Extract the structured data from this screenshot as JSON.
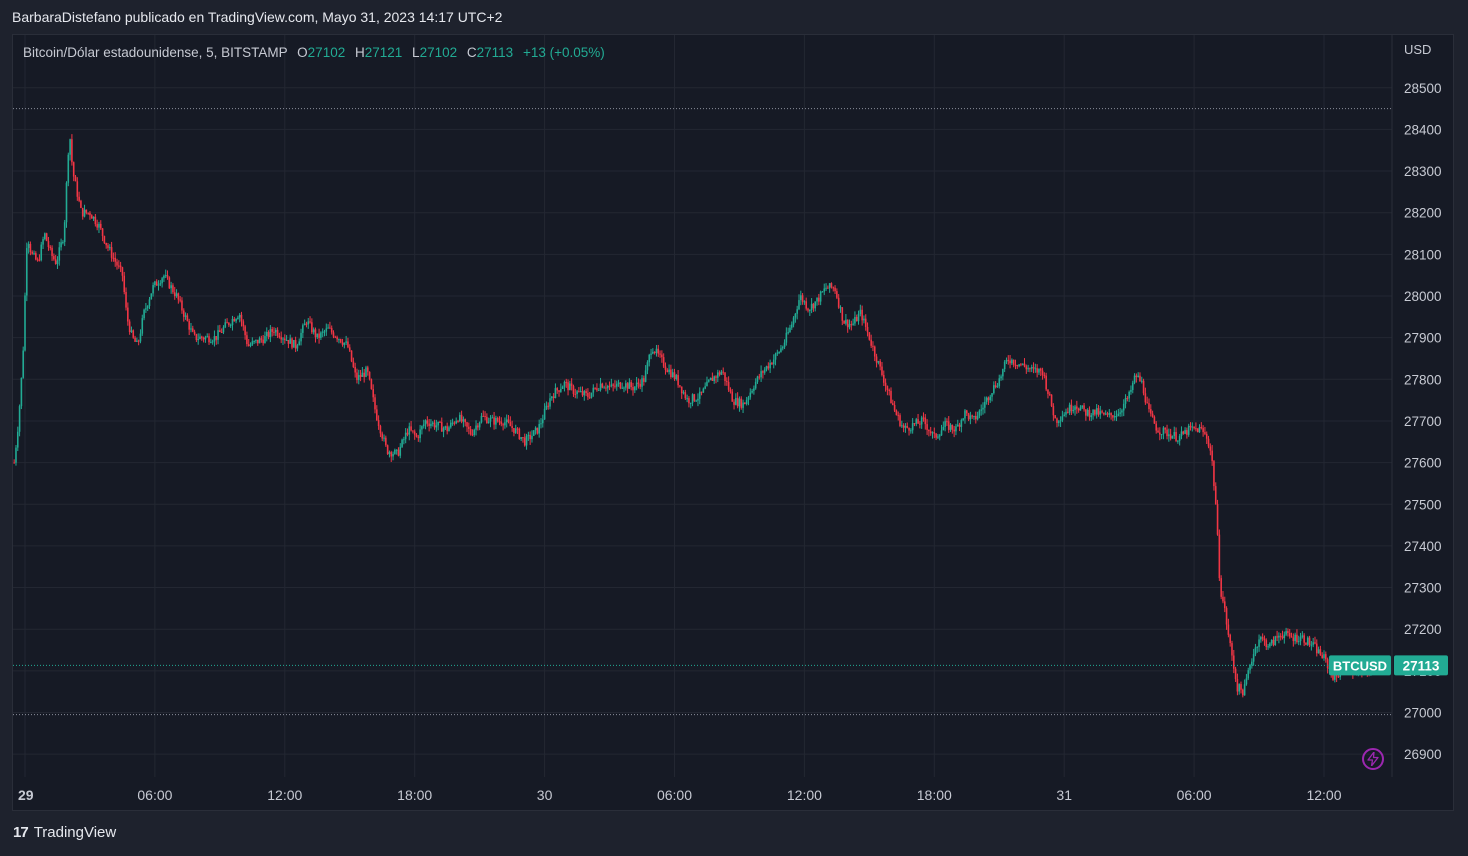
{
  "header": {
    "publisher_line": "BarbaraDistefano publicado en TradingView.com, Mayo 31, 2023 14:17 UTC+2"
  },
  "legend": {
    "symbol_text": "Bitcoin/Dólar estadounidense, 5, BITSTAMP",
    "o_label": "O",
    "o_value": "27102",
    "h_label": "H",
    "h_value": "27121",
    "l_label": "L",
    "l_value": "27102",
    "c_label": "C",
    "c_value": "27113",
    "change": "+13 (+0.05%)"
  },
  "axis": {
    "currency": "USD"
  },
  "footer": {
    "brand_mark": "17",
    "brand_name": "TradingView"
  },
  "icons": {
    "alert": "lightning-bolt-icon",
    "brand": "tradingview-logo-icon"
  },
  "colors": {
    "up": "#22ab94",
    "down": "#f23645",
    "background": "#161a25",
    "grid": "#232732",
    "badge": "#22ab94",
    "alert": "#9c27b0"
  },
  "chart_data": {
    "type": "candlestick",
    "symbol": "BTCUSD",
    "interval": "5",
    "exchange": "BITSTAMP",
    "y_ticks": [
      26900,
      27000,
      27100,
      27200,
      27300,
      27400,
      27500,
      27600,
      27700,
      27800,
      27900,
      28000,
      28100,
      28200,
      28300,
      28400,
      28500
    ],
    "x_ticks": [
      {
        "label": "29",
        "hour": 0,
        "bold": true
      },
      {
        "label": "06:00",
        "hour": 6
      },
      {
        "label": "12:00",
        "hour": 12
      },
      {
        "label": "18:00",
        "hour": 18
      },
      {
        "label": "30",
        "hour": 24
      },
      {
        "label": "06:00",
        "hour": 30
      },
      {
        "label": "12:00",
        "hour": 36
      },
      {
        "label": "18:00",
        "hour": 42
      },
      {
        "label": "31",
        "hour": 48
      },
      {
        "label": "06:00",
        "hour": 54
      },
      {
        "label": "12:00",
        "hour": 60
      }
    ],
    "high_line": 28450,
    "low_line": 26995,
    "last_price": 27113,
    "last_label": "BTCUSD",
    "last_value_label": "27113",
    "price_path": [
      [
        -0.5,
        27600
      ],
      [
        -0.3,
        27700
      ],
      [
        -0.1,
        27850
      ],
      [
        0.1,
        28150
      ],
      [
        0.3,
        28100
      ],
      [
        0.6,
        28080
      ],
      [
        0.9,
        28150
      ],
      [
        1.2,
        28100
      ],
      [
        1.45,
        28080
      ],
      [
        1.8,
        28150
      ],
      [
        2.05,
        28400
      ],
      [
        2.2,
        28300
      ],
      [
        2.4,
        28250
      ],
      [
        2.6,
        28200
      ],
      [
        3.0,
        28200
      ],
      [
        3.4,
        28170
      ],
      [
        3.8,
        28120
      ],
      [
        4.2,
        28080
      ],
      [
        4.5,
        28050
      ],
      [
        4.7,
        27950
      ],
      [
        4.95,
        27900
      ],
      [
        5.2,
        27880
      ],
      [
        5.5,
        27960
      ],
      [
        5.9,
        28020
      ],
      [
        6.4,
        28050
      ],
      [
        7.0,
        28000
      ],
      [
        7.4,
        27950
      ],
      [
        7.8,
        27900
      ],
      [
        8.3,
        27900
      ],
      [
        8.8,
        27900
      ],
      [
        9.3,
        27930
      ],
      [
        9.9,
        27960
      ],
      [
        10.3,
        27880
      ],
      [
        10.7,
        27890
      ],
      [
        11.1,
        27900
      ],
      [
        11.5,
        27920
      ],
      [
        12.0,
        27900
      ],
      [
        12.5,
        27880
      ],
      [
        13.0,
        27940
      ],
      [
        13.5,
        27900
      ],
      [
        14.0,
        27920
      ],
      [
        14.5,
        27900
      ],
      [
        14.9,
        27880
      ],
      [
        15.3,
        27800
      ],
      [
        15.8,
        27820
      ],
      [
        16.2,
        27720
      ],
      [
        16.7,
        27630
      ],
      [
        17.2,
        27620
      ],
      [
        17.7,
        27680
      ],
      [
        18.1,
        27660
      ],
      [
        18.5,
        27700
      ],
      [
        19.0,
        27690
      ],
      [
        19.5,
        27680
      ],
      [
        20.0,
        27710
      ],
      [
        20.6,
        27670
      ],
      [
        21.1,
        27710
      ],
      [
        21.6,
        27700
      ],
      [
        22.1,
        27700
      ],
      [
        22.6,
        27680
      ],
      [
        23.1,
        27650
      ],
      [
        23.7,
        27680
      ],
      [
        24.3,
        27760
      ],
      [
        24.9,
        27790
      ],
      [
        25.4,
        27770
      ],
      [
        26.0,
        27760
      ],
      [
        26.6,
        27790
      ],
      [
        27.1,
        27780
      ],
      [
        27.6,
        27790
      ],
      [
        28.1,
        27780
      ],
      [
        28.6,
        27800
      ],
      [
        28.95,
        27880
      ],
      [
        29.2,
        27860
      ],
      [
        29.6,
        27830
      ],
      [
        30.1,
        27800
      ],
      [
        30.6,
        27750
      ],
      [
        31.2,
        27760
      ],
      [
        31.7,
        27800
      ],
      [
        32.2,
        27820
      ],
      [
        32.7,
        27750
      ],
      [
        33.2,
        27740
      ],
      [
        33.7,
        27790
      ],
      [
        34.1,
        27820
      ],
      [
        34.6,
        27850
      ],
      [
        35.0,
        27880
      ],
      [
        35.4,
        27930
      ],
      [
        35.8,
        28000
      ],
      [
        36.2,
        27970
      ],
      [
        36.6,
        27990
      ],
      [
        37.0,
        28020
      ],
      [
        37.4,
        28020
      ],
      [
        37.8,
        27940
      ],
      [
        38.2,
        27930
      ],
      [
        38.6,
        27960
      ],
      [
        39.0,
        27900
      ],
      [
        39.4,
        27840
      ],
      [
        39.8,
        27780
      ],
      [
        40.2,
        27720
      ],
      [
        40.6,
        27680
      ],
      [
        41.0,
        27690
      ],
      [
        41.5,
        27700
      ],
      [
        42.0,
        27660
      ],
      [
        42.5,
        27690
      ],
      [
        43.0,
        27680
      ],
      [
        43.4,
        27720
      ],
      [
        43.8,
        27700
      ],
      [
        44.2,
        27730
      ],
      [
        44.6,
        27770
      ],
      [
        45.0,
        27800
      ],
      [
        45.4,
        27850
      ],
      [
        45.8,
        27840
      ],
      [
        46.2,
        27830
      ],
      [
        46.6,
        27820
      ],
      [
        47.0,
        27820
      ],
      [
        47.3,
        27760
      ],
      [
        47.6,
        27700
      ],
      [
        48.0,
        27720
      ],
      [
        48.5,
        27740
      ],
      [
        49.0,
        27720
      ],
      [
        49.5,
        27720
      ],
      [
        50.0,
        27710
      ],
      [
        50.5,
        27720
      ],
      [
        51.0,
        27760
      ],
      [
        51.3,
        27810
      ],
      [
        51.6,
        27790
      ],
      [
        51.9,
        27720
      ],
      [
        52.3,
        27680
      ],
      [
        52.8,
        27670
      ],
      [
        53.3,
        27660
      ],
      [
        53.8,
        27680
      ],
      [
        54.3,
        27680
      ],
      [
        54.6,
        27660
      ],
      [
        54.8,
        27620
      ],
      [
        55.0,
        27500
      ],
      [
        55.2,
        27300
      ],
      [
        55.4,
        27250
      ],
      [
        55.6,
        27180
      ],
      [
        55.8,
        27120
      ],
      [
        56.0,
        27060
      ],
      [
        56.3,
        27050
      ],
      [
        56.6,
        27120
      ],
      [
        57.0,
        27180
      ],
      [
        57.5,
        27160
      ],
      [
        58.0,
        27190
      ],
      [
        58.5,
        27180
      ],
      [
        59.0,
        27180
      ],
      [
        59.5,
        27160
      ],
      [
        60.0,
        27130
      ],
      [
        60.5,
        27080
      ],
      [
        61.0,
        27120
      ],
      [
        61.5,
        27090
      ],
      [
        62.0,
        27100
      ],
      [
        62.4,
        27113
      ]
    ]
  }
}
